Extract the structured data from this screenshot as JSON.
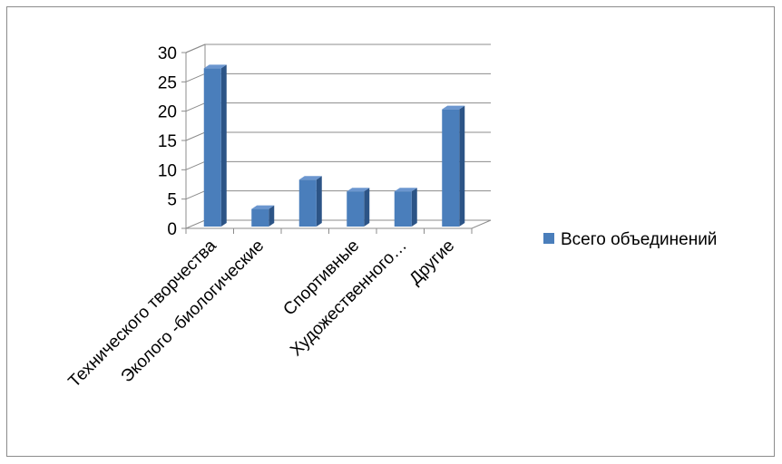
{
  "chart_data": {
    "type": "bar",
    "categories": [
      "Технического творчества",
      "Эколого -биологические",
      "",
      "Спортивные",
      "Художественного…",
      "Другие"
    ],
    "series": [
      {
        "name": "Всего объединений",
        "values": [
          27,
          3,
          8,
          6,
          6,
          20
        ]
      }
    ],
    "y_ticks": [
      "0",
      "5",
      "10",
      "15",
      "20",
      "25",
      "30"
    ],
    "ylim": [
      0,
      30
    ],
    "grid": true,
    "legend_position": "right",
    "bar_style": "3d-column",
    "colors": {
      "bar_front": "#4a7ebb",
      "bar_side": "#2c5486",
      "bar_top": "#6b96cf",
      "grid": "#8c8c8c",
      "axis": "#8c8c8c",
      "frame": "#8c8c8c"
    }
  }
}
